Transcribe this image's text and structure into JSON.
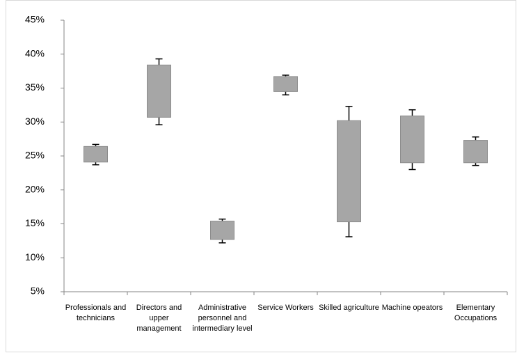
{
  "chart_data": {
    "type": "box",
    "categories": [
      "Professionals and technicians",
      "Directors and upper management",
      "Administrative personnel and intermediary level",
      "Service Workers",
      "Skilled agriculture",
      "Machine opeators",
      "Elementary Occupations"
    ],
    "series": [
      {
        "name": "min",
        "values": [
          23.7,
          29.6,
          12.2,
          34.0,
          13.1,
          23.0,
          23.6
        ]
      },
      {
        "name": "q1",
        "values": [
          24.1,
          30.7,
          12.7,
          34.5,
          15.3,
          24.0,
          24.0
        ]
      },
      {
        "name": "q3",
        "values": [
          26.4,
          38.4,
          15.4,
          36.7,
          30.2,
          30.9,
          27.3
        ]
      },
      {
        "name": "max",
        "values": [
          26.7,
          39.3,
          15.7,
          36.9,
          32.3,
          31.8,
          27.8
        ]
      }
    ],
    "color": "#a6a6a6",
    "ylim": [
      5,
      45
    ],
    "yticks": [
      {
        "value": 5,
        "label": "5%"
      },
      {
        "value": 10,
        "label": "10%"
      },
      {
        "value": 15,
        "label": "15%"
      },
      {
        "value": 20,
        "label": "20%"
      },
      {
        "value": 25,
        "label": "25%"
      },
      {
        "value": 30,
        "label": "30%"
      },
      {
        "value": 35,
        "label": "35%"
      },
      {
        "value": 40,
        "label": "40%"
      },
      {
        "value": 45,
        "label": "45%"
      }
    ]
  }
}
